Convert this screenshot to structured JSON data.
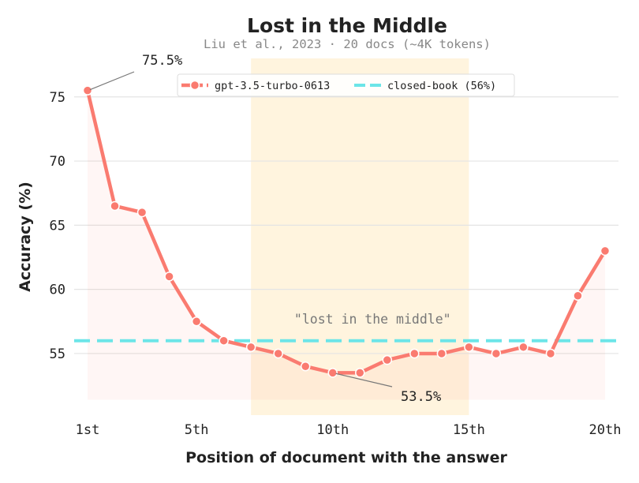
{
  "chart_data": {
    "type": "line",
    "title": "Lost in the Middle",
    "subtitle": "Liu et al., 2023  ·  20 docs (~4K tokens)",
    "xlabel": "Position of document with the answer",
    "ylabel": "Accuracy (%)",
    "xlim": [
      1,
      20
    ],
    "ylim": [
      50.2,
      78
    ],
    "x": [
      1,
      2,
      3,
      4,
      5,
      6,
      7,
      8,
      9,
      10,
      11,
      12,
      13,
      14,
      15,
      16,
      17,
      18,
      19,
      20
    ],
    "x_ticks": [
      {
        "value": 1,
        "label": "1st"
      },
      {
        "value": 5,
        "label": "5th"
      },
      {
        "value": 10,
        "label": "10th"
      },
      {
        "value": 15,
        "label": "15th"
      },
      {
        "value": 20,
        "label": "20th"
      }
    ],
    "y_ticks": [
      55,
      60,
      65,
      70,
      75
    ],
    "grid": "horizontal",
    "series": [
      {
        "name": "gpt-3.5-turbo-0613",
        "color": "#FA7B70",
        "values": [
          75.5,
          66.5,
          66.0,
          61.0,
          57.5,
          56.0,
          55.5,
          55.0,
          54.0,
          53.5,
          53.5,
          54.5,
          55.0,
          55.0,
          55.5,
          55.0,
          55.5,
          55.0,
          59.5,
          63.0
        ]
      }
    ],
    "reference_line": {
      "name": "closed-book (56%)",
      "value": 56,
      "color": "#6CE5E8"
    },
    "highlight_region": {
      "x_range": [
        7,
        15
      ],
      "label": "\"lost in the middle\"",
      "color": "#FFF4DE"
    },
    "annotations": [
      {
        "text": "75.5%",
        "x": 1,
        "y": 75.5
      },
      {
        "text": "53.5%",
        "x": 10,
        "y": 53.5
      }
    ],
    "legend_position": "top-center"
  }
}
